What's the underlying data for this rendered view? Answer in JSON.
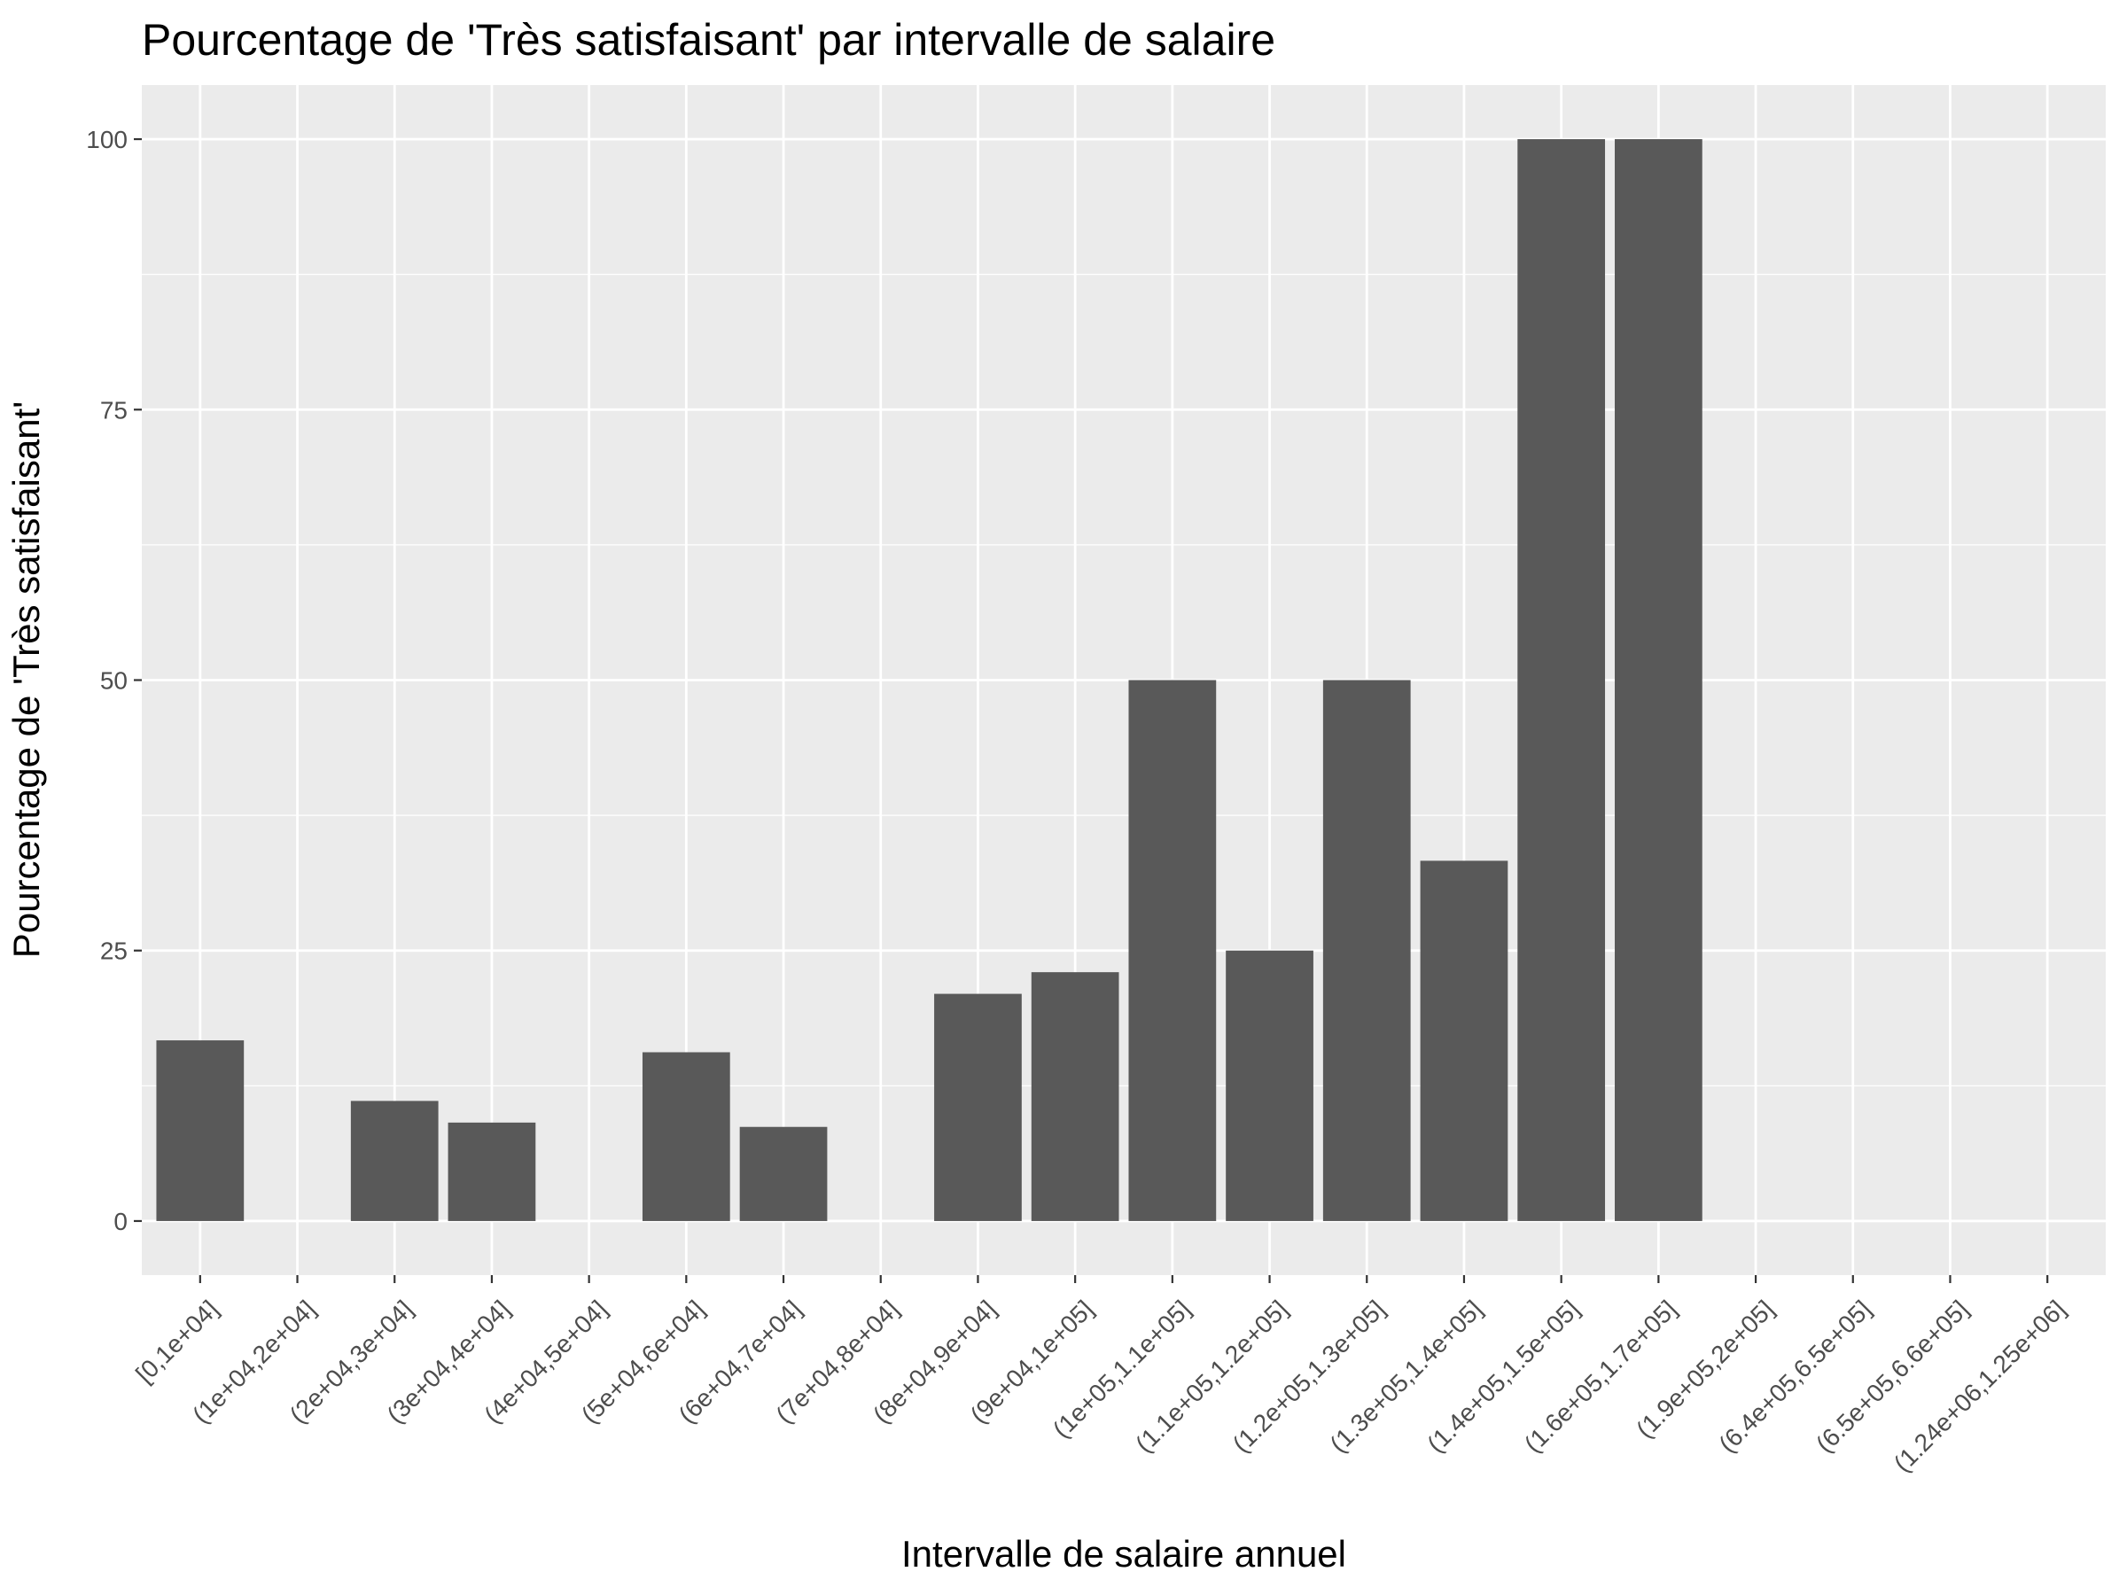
{
  "chart_data": {
    "type": "bar",
    "title": "Pourcentage de 'Très satisfaisant' par intervalle de salaire",
    "xlabel": "Intervalle de salaire annuel",
    "ylabel": "Pourcentage de 'Très satisfaisant'",
    "categories": [
      "[0,1e+04]",
      "(1e+04,2e+04]",
      "(2e+04,3e+04]",
      "(3e+04,4e+04]",
      "(4e+04,5e+04]",
      "(5e+04,6e+04]",
      "(6e+04,7e+04]",
      "(7e+04,8e+04]",
      "(8e+04,9e+04]",
      "(9e+04,1e+05]",
      "(1e+05,1.1e+05]",
      "(1.1e+05,1.2e+05]",
      "(1.2e+05,1.3e+05]",
      "(1.3e+05,1.4e+05]",
      "(1.4e+05,1.5e+05]",
      "(1.6e+05,1.7e+05]",
      "(1.9e+05,2e+05]",
      "(6.4e+05,6.5e+05]",
      "(6.5e+05,6.6e+05]",
      "(1.24e+06,1.25e+06]"
    ],
    "values": [
      16.7,
      0,
      11.1,
      9.1,
      0,
      15.6,
      8.7,
      0,
      21.0,
      23.0,
      50,
      25,
      50,
      33.3,
      100,
      100,
      0,
      0,
      0,
      0
    ],
    "yticks": [
      0,
      25,
      50,
      75,
      100
    ],
    "ylim": [
      -5,
      105
    ],
    "grid": true,
    "legend": "none",
    "colors": {
      "bar": "#595959",
      "panel": "#ebebeb",
      "grid_major": "#ffffff",
      "tick_text": "#4d4d4d"
    }
  }
}
